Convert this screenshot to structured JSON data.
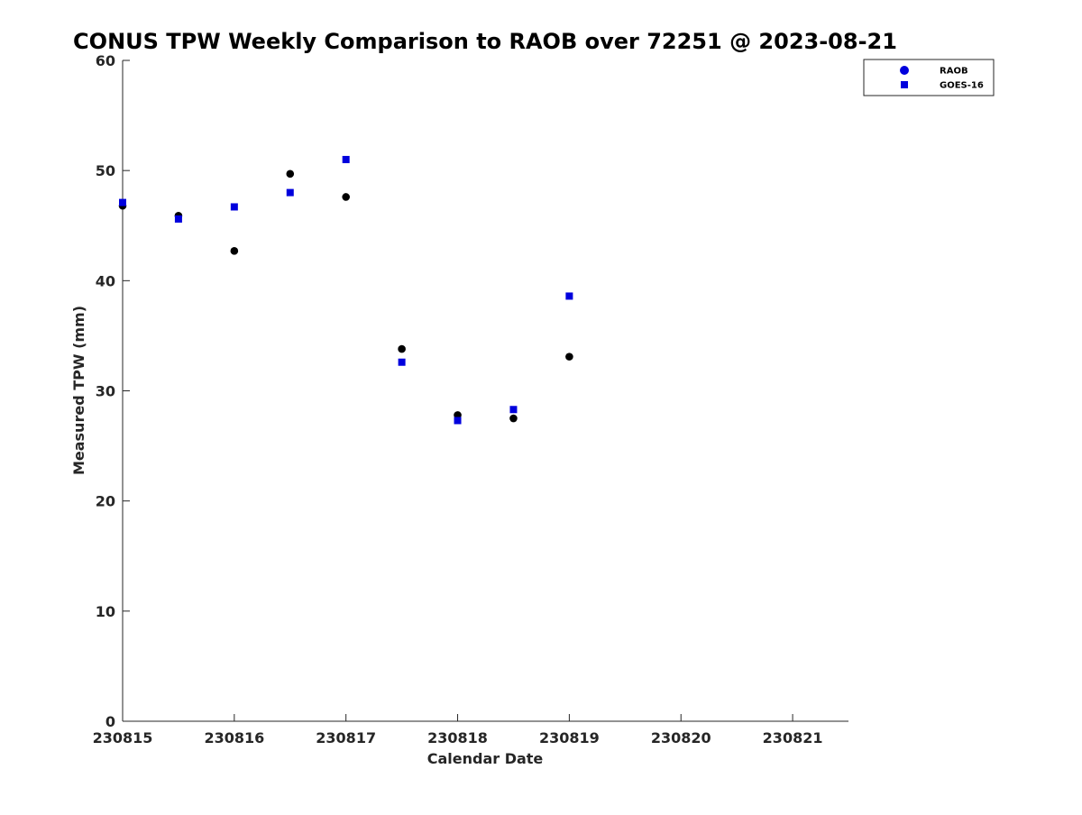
{
  "chart_data": {
    "type": "scatter",
    "title": "CONUS TPW Weekly Comparison to RAOB over 72251 @ 2023-08-21",
    "xlabel": "Calendar Date",
    "ylabel": "Measured TPW (mm)",
    "x_tick_labels": [
      "230815",
      "230816",
      "230817",
      "230818",
      "230819",
      "230820",
      "230821"
    ],
    "x_tick_values": [
      0,
      1,
      2,
      3,
      4,
      5,
      6
    ],
    "xlim": [
      0,
      6.5
    ],
    "y_ticks": [
      0,
      10,
      20,
      30,
      40,
      50,
      60
    ],
    "ylim": [
      0,
      60
    ],
    "grid": false,
    "legend_position": "top-right",
    "series": [
      {
        "name": "RAOB",
        "marker": "circle",
        "color": "#000000",
        "legend_color": "#0000dd",
        "x": [
          0,
          0.5,
          1,
          1.5,
          2,
          2.5,
          3,
          3.5,
          4
        ],
        "values": [
          46.8,
          45.9,
          42.7,
          49.7,
          47.6,
          33.8,
          27.8,
          27.5,
          33.1
        ]
      },
      {
        "name": "GOES-16",
        "marker": "square",
        "color": "#0000dd",
        "legend_color": "#0000dd",
        "x": [
          0,
          0.5,
          1,
          1.5,
          2,
          2.5,
          3,
          3.5,
          4
        ],
        "values": [
          47.1,
          45.6,
          46.7,
          48.0,
          51.0,
          32.6,
          27.3,
          28.3,
          38.6
        ]
      }
    ]
  }
}
